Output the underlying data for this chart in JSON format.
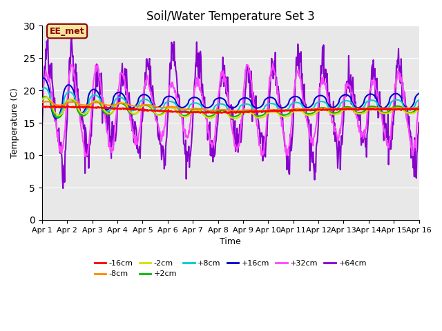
{
  "title": "Soil/Water Temperature Set 3",
  "xlabel": "Time",
  "ylabel": "Temperature (C)",
  "xlim": [
    0,
    15
  ],
  "ylim": [
    0,
    30
  ],
  "yticks": [
    0,
    5,
    10,
    15,
    20,
    25,
    30
  ],
  "xtick_labels": [
    "Apr 1",
    "Apr 2",
    "Apr 3",
    "Apr 4",
    "Apr 5",
    "Apr 6",
    "Apr 7",
    "Apr 8",
    "Apr 9",
    "Apr 10",
    "Apr 11",
    "Apr 12",
    "Apr 13",
    "Apr 14",
    "Apr 15",
    "Apr 16"
  ],
  "annotation_text": "EE_met",
  "annotation_color": "#8B0000",
  "annotation_bg": "#f5e6a0",
  "annotation_border": "#8B0000",
  "series": {
    "-16cm": {
      "color": "#ff0000",
      "linewidth": 1.8
    },
    "-8cm": {
      "color": "#ff8800",
      "linewidth": 1.5
    },
    "-2cm": {
      "color": "#dddd00",
      "linewidth": 1.5
    },
    "+2cm": {
      "color": "#00bb00",
      "linewidth": 1.5
    },
    "+8cm": {
      "color": "#00cccc",
      "linewidth": 1.5
    },
    "+16cm": {
      "color": "#0000cc",
      "linewidth": 1.5
    },
    "+32cm": {
      "color": "#ff44ff",
      "linewidth": 1.5
    },
    "+64cm": {
      "color": "#8800cc",
      "linewidth": 1.5
    }
  },
  "background_color": "#e8e8e8",
  "fig_background": "#ffffff",
  "legend_order": [
    "-16cm",
    "-8cm",
    "-2cm",
    "+2cm",
    "+8cm",
    "+16cm",
    "+32cm",
    "+64cm"
  ]
}
